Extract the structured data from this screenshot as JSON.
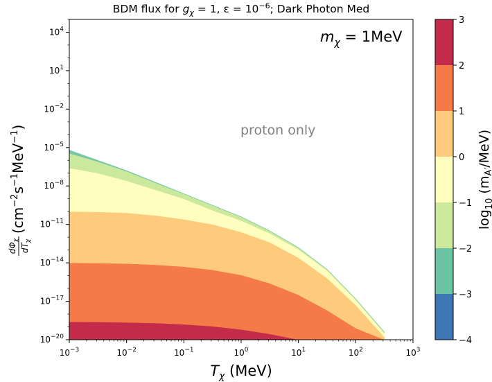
{
  "chart_data": {
    "type": "area",
    "title": "BDM flux for g_χ = 1, ε = 10^-6; Dark Photon Med",
    "title_parts": {
      "a": "BDM flux for ",
      "g": "g",
      "g_sub": "χ",
      "b": " = 1, ε = 10",
      "eps_exp": "−6",
      "c": "; Dark Photon Med"
    },
    "annotation_mass": {
      "m": "m",
      "sub": "χ",
      "rest": " = 1MeV"
    },
    "annotation_region": "proton only",
    "xlabel": {
      "T": "T",
      "sub": "χ",
      "unit": " (MeV)"
    },
    "ylabel": {
      "d": "d",
      "Phi": "Φ",
      "chi": "χ",
      "dT": "dT",
      "unit_a": "(cm",
      "exp_m2": "−2",
      "unit_b": "s",
      "exp_m1a": "−1",
      "unit_c": "MeV",
      "exp_m1b": "−1",
      "unit_d": ")"
    },
    "x_scale": "log",
    "y_scale": "log",
    "xlim_log10": [
      -3,
      3
    ],
    "ylim_log10": [
      -20,
      5
    ],
    "x_ticks": [
      {
        "base": "10",
        "exp": "−3",
        "log": -3
      },
      {
        "base": "10",
        "exp": "−2",
        "log": -2
      },
      {
        "base": "10",
        "exp": "−1",
        "log": -1
      },
      {
        "base": "10",
        "exp": "0",
        "log": 0
      },
      {
        "base": "10",
        "exp": "1",
        "log": 1
      },
      {
        "base": "10",
        "exp": "2",
        "log": 2
      },
      {
        "base": "10",
        "exp": "3",
        "log": 3
      }
    ],
    "y_ticks": [
      {
        "base": "10",
        "exp": "4",
        "log": 4
      },
      {
        "base": "10",
        "exp": "1",
        "log": 1
      },
      {
        "base": "10",
        "exp": "−2",
        "log": -2
      },
      {
        "base": "10",
        "exp": "−5",
        "log": -5
      },
      {
        "base": "10",
        "exp": "−8",
        "log": -8
      },
      {
        "base": "10",
        "exp": "−11",
        "log": -11
      },
      {
        "base": "10",
        "exp": "−14",
        "log": -14
      },
      {
        "base": "10",
        "exp": "−17",
        "log": -17
      },
      {
        "base": "10",
        "exp": "−20",
        "log": -20
      }
    ],
    "log10T_samples": [
      -3,
      -2.5,
      -2,
      -1.5,
      -1,
      -0.5,
      0,
      0.5,
      1,
      1.5,
      2,
      2.5
    ],
    "boundaries_log10_flux": [
      {
        "label": "top",
        "values": [
          -5.2,
          -6.0,
          -6.8,
          -7.7,
          -8.6,
          -9.5,
          -10.4,
          -11.5,
          -12.8,
          -14.5,
          -16.8,
          -19.4
        ]
      },
      {
        "label": "2_3",
        "values": [
          -18.6,
          -18.62,
          -18.65,
          -18.7,
          -18.8,
          -18.95,
          -19.2,
          -19.55,
          -20.0,
          -20.0,
          -20.0,
          -20.0
        ]
      },
      {
        "label": "1_2",
        "values": [
          -14.0,
          -14.02,
          -14.06,
          -14.15,
          -14.3,
          -14.55,
          -14.95,
          -15.6,
          -16.5,
          -17.7,
          -19.1,
          -20.0
        ]
      },
      {
        "label": "0_1",
        "values": [
          -10.0,
          -10.02,
          -10.1,
          -10.3,
          -10.6,
          -11.0,
          -11.6,
          -12.4,
          -13.6,
          -15.2,
          -17.3,
          -19.8
        ]
      },
      {
        "label": "-1_0",
        "values": [
          -6.6,
          -7.0,
          -7.6,
          -8.3,
          -9.0,
          -9.9,
          -10.7,
          -11.7,
          -12.95,
          -14.6,
          -16.9,
          -19.5
        ]
      },
      {
        "label": "-2_-1",
        "values": [
          -5.45,
          -6.1,
          -6.85,
          -7.75,
          -8.62,
          -9.52,
          -10.42,
          -11.52,
          -12.82,
          -14.52,
          -16.82,
          -19.42
        ]
      }
    ],
    "bands": [
      {
        "range": "2 to 3",
        "color": "#c42a4a",
        "upper": "2_3",
        "lower": "floor"
      },
      {
        "range": "1 to 2",
        "color": "#f47a48",
        "upper": "1_2",
        "lower": "2_3"
      },
      {
        "range": "0 to 1",
        "color": "#fecb7c",
        "upper": "0_1",
        "lower": "1_2"
      },
      {
        "range": "-1 to 0",
        "color": "#fffebf",
        "upper": "-1_0",
        "lower": "0_1"
      },
      {
        "range": "-2 to -1",
        "color": "#cbe99c",
        "upper": "-2_-1",
        "lower": "-1_0"
      },
      {
        "range": "-3 to -2",
        "color": "#75c7a6",
        "upper": "top",
        "lower": "-2_-1"
      }
    ],
    "colorbar": {
      "label": {
        "log": "log",
        "sub": "10",
        "rest": " (m",
        "A": "A′",
        "unit": "/MeV)"
      },
      "ticks": [
        "3",
        "2",
        "1",
        "0",
        "−1",
        "−2",
        "−3",
        "−4"
      ],
      "levels": [
        {
          "range": "-4 to -3",
          "color": "#3f77b5"
        },
        {
          "range": "-3 to -2",
          "color": "#6cc4a4"
        },
        {
          "range": "-2 to -1",
          "color": "#cde99c"
        },
        {
          "range": "-1 to 0",
          "color": "#fffebf"
        },
        {
          "range": "0 to 1",
          "color": "#fecb7c"
        },
        {
          "range": "1 to 2",
          "color": "#f47a48"
        },
        {
          "range": "2 to 3",
          "color": "#c42a4a"
        }
      ]
    }
  }
}
